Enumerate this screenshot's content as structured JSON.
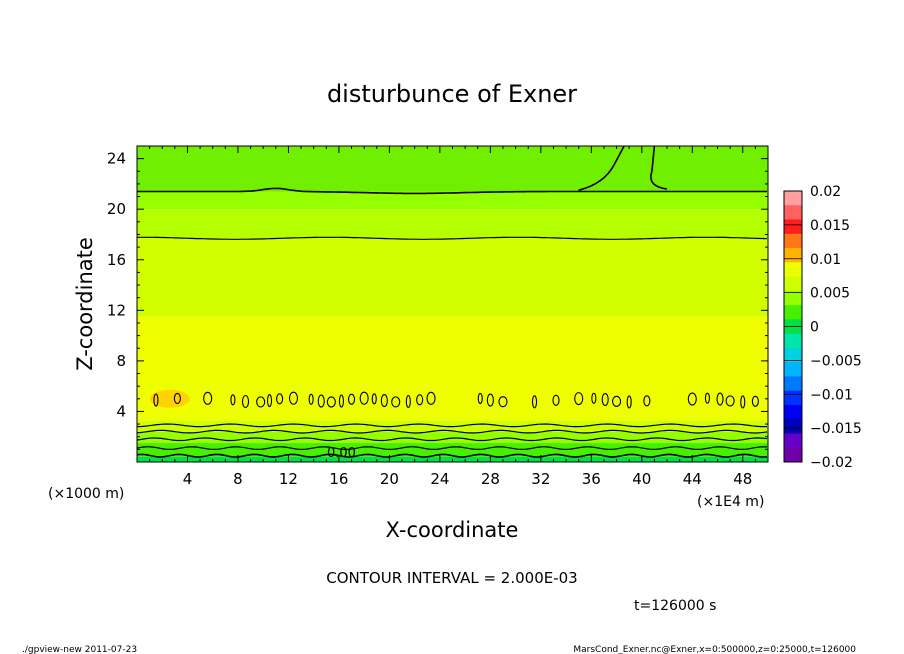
{
  "chart_data": {
    "type": "heatmap",
    "title": "disturbunce of Exner",
    "xlabel": "X-coordinate",
    "ylabel": "Z-coordinate",
    "x_unit_label": "(×1E4 m)",
    "y_unit_label": "(×1000 m)",
    "xlim": [
      0,
      50
    ],
    "ylim": [
      0,
      25
    ],
    "x_ticks": [
      4,
      8,
      12,
      16,
      20,
      24,
      28,
      32,
      36,
      40,
      44,
      48
    ],
    "y_ticks": [
      4,
      8,
      12,
      16,
      20,
      24
    ],
    "x_tick_labels": [
      "4",
      "8",
      "12",
      "16",
      "20",
      "24",
      "28",
      "32",
      "36",
      "40",
      "44",
      "48"
    ],
    "y_tick_labels": [
      "4",
      "8",
      "12",
      "16",
      "20",
      "24"
    ],
    "colorbar": {
      "min": -0.02,
      "max": 0.02,
      "tick_values": [
        0.02,
        0.015,
        0.01,
        0.005,
        0,
        -0.005,
        -0.01,
        -0.015,
        -0.02
      ],
      "tick_labels": [
        "0.02",
        "0.015",
        "0.01",
        "0.005",
        "0",
        "−0.005",
        "−0.01",
        "−0.015",
        "−0.02"
      ],
      "colors": [
        "#ff9f9f",
        "#ff6060",
        "#ff1e1e",
        "#ff7818",
        "#ffb400",
        "#f0ff00",
        "#d2ff00",
        "#96ff00",
        "#46f000",
        "#00e146",
        "#00e6aa",
        "#00d2e1",
        "#00b4ff",
        "#0078ff",
        "#0032ff",
        "#0000f0",
        "#0000b4",
        "#6400c8",
        "#6e00aa"
      ]
    },
    "bands": [
      {
        "z_bottom": 0,
        "z_top": 0.4,
        "color": "#00e146"
      },
      {
        "z_bottom": 0.4,
        "z_top": 1.5,
        "color": "#46f000"
      },
      {
        "z_bottom": 1.5,
        "z_top": 2.4,
        "color": "#96ff00"
      },
      {
        "z_bottom": 2.4,
        "z_top": 3.3,
        "color": "#d2ff00"
      },
      {
        "z_bottom": 3.3,
        "z_top": 11.5,
        "color": "#f0ff00"
      },
      {
        "z_bottom": 11.5,
        "z_top": 17.7,
        "color": "#d2ff00"
      },
      {
        "z_bottom": 17.7,
        "z_top": 20.0,
        "color": "#b4ff00"
      },
      {
        "z_bottom": 20.0,
        "z_top": 21.4,
        "color": "#96ff00"
      },
      {
        "z_bottom": 21.4,
        "z_top": 25.0,
        "color": "#70f000"
      }
    ],
    "contour_levels_z": [
      0.5,
      1.1,
      1.8,
      2.4,
      2.9,
      17.7,
      21.4
    ],
    "contour_label": {
      "text": "0.00",
      "x": 16.2,
      "z": 0.4
    },
    "contour_interval_text": "CONTOUR INTERVAL = 2.000E-03",
    "time_text": "t=126000  s"
  },
  "footer": {
    "left": "./gpview-new   2011-07-23",
    "right": "MarsCond_Exner.nc@Exner,x=0:500000,z=0:25000,t=126000"
  },
  "colors": {
    "warm_patch": "#ffd200"
  }
}
